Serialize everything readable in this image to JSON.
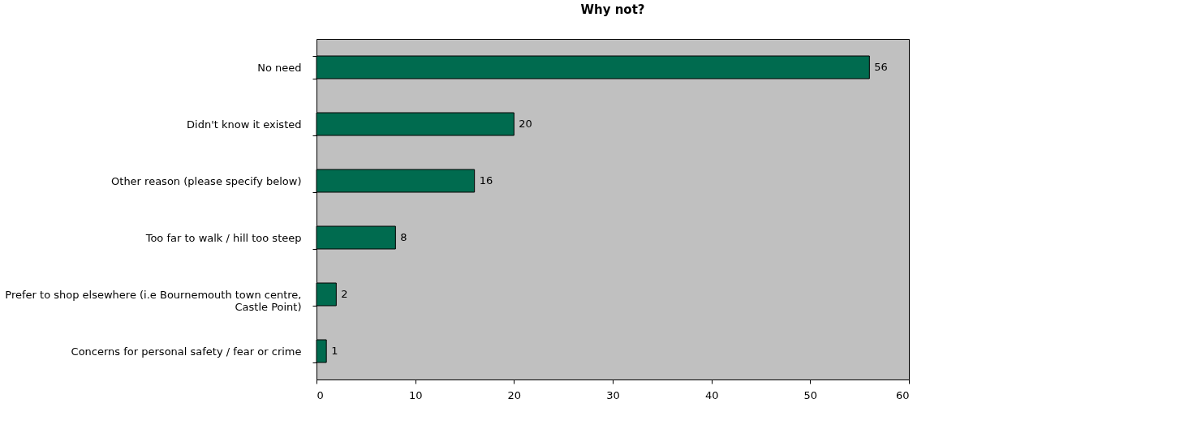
{
  "chart_data": {
    "type": "bar",
    "orientation": "horizontal",
    "title": "Why not?",
    "categories": [
      "No need",
      "Didn't know it existed",
      "Other reason (please specify below)",
      "Too far to walk / hill too steep",
      "Prefer to shop elsewhere (i.e Bournemouth town centre, Castle Point)",
      "Concerns for personal safety / fear or crime"
    ],
    "values": [
      56,
      20,
      16,
      8,
      2,
      1
    ],
    "color": "#006b4f",
    "xlim": [
      0,
      60
    ],
    "xticks": [
      0,
      10,
      20,
      30,
      40,
      50,
      60
    ],
    "data_labels": true,
    "grid": false
  }
}
